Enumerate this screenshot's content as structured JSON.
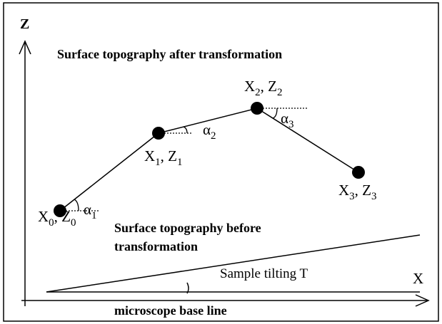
{
  "axes": {
    "z": "Z",
    "x": "X"
  },
  "title_after": "Surface topography after transformation",
  "title_before": [
    "Surface topography before",
    "transformation"
  ],
  "tilt_label": "Sample tilting T",
  "base_label": "microscope base line",
  "points": [
    {
      "label": [
        "X",
        "0",
        ", Z",
        "0"
      ],
      "angle": [
        "α",
        "1"
      ]
    },
    {
      "label": [
        "X",
        "1",
        ", Z",
        "1"
      ],
      "angle": [
        "α",
        "2"
      ]
    },
    {
      "label": [
        "X",
        "2",
        ", Z",
        "2"
      ],
      "angle": [
        "α",
        "3"
      ]
    },
    {
      "label": [
        "X",
        "3",
        ", Z",
        "3"
      ]
    }
  ]
}
